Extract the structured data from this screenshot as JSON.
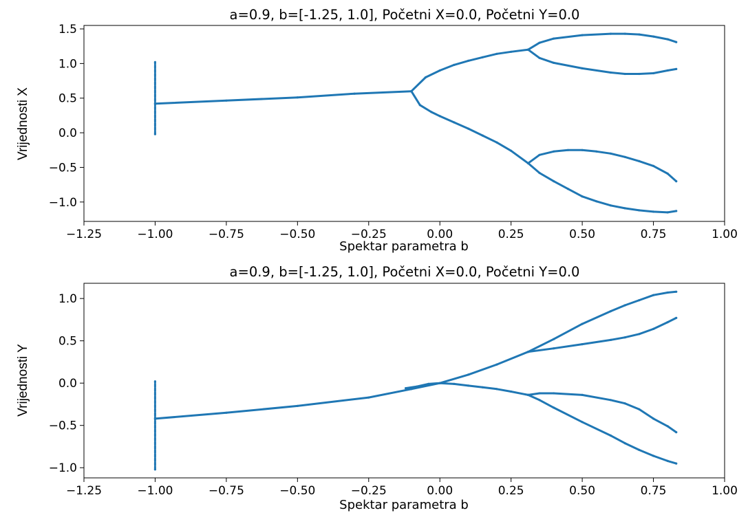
{
  "colors": {
    "series": "#1f77b4",
    "axes": "#000000",
    "background": "#ffffff"
  },
  "chart_data": [
    {
      "type": "scatter",
      "title": "a=0.9, b=[-1.25, 1.0], Početni X=0.0, Početni Y=0.0",
      "xlabel": "Spektar parametra b",
      "ylabel": "Vrijednosti X",
      "xlim": [
        -1.25,
        1.0
      ],
      "ylim": [
        -1.28,
        1.55
      ],
      "x_ticks": [
        "−1.25",
        "−1.00",
        "−0.75",
        "−0.50",
        "−0.25",
        "0.00",
        "0.25",
        "0.50",
        "0.75",
        "1.00"
      ],
      "y_ticks": [
        "−1.0",
        "−0.5",
        "0.0",
        "0.5",
        "1.0",
        "1.5"
      ],
      "x_tick_values": [
        -1.25,
        -1.0,
        -0.75,
        -0.5,
        -0.25,
        0.0,
        0.25,
        0.5,
        0.75,
        1.0
      ],
      "y_tick_values": [
        -1.0,
        -0.5,
        0.0,
        0.5,
        1.0,
        1.5
      ],
      "grid": false,
      "series": [
        {
          "values": [
            [
              -1.0,
              0.42
            ],
            [
              -0.75,
              0.465
            ],
            [
              -0.5,
              0.51
            ],
            [
              -0.3,
              0.565
            ],
            [
              -0.1,
              0.6
            ]
          ]
        },
        {
          "values": [
            [
              -0.1,
              0.6
            ],
            [
              -0.05,
              0.8
            ],
            [
              0.0,
              0.9
            ],
            [
              0.05,
              0.98
            ],
            [
              0.1,
              1.04
            ],
            [
              0.15,
              1.09
            ],
            [
              0.2,
              1.14
            ],
            [
              0.25,
              1.17
            ],
            [
              0.31,
              1.2
            ]
          ]
        },
        {
          "values": [
            [
              -0.1,
              0.6
            ],
            [
              -0.07,
              0.4
            ],
            [
              -0.03,
              0.3
            ],
            [
              0.0,
              0.24
            ],
            [
              0.05,
              0.15
            ],
            [
              0.1,
              0.06
            ],
            [
              0.15,
              -0.04
            ],
            [
              0.2,
              -0.14
            ],
            [
              0.25,
              -0.26
            ],
            [
              0.31,
              -0.44
            ]
          ]
        },
        {
          "values": [
            [
              0.31,
              1.2
            ],
            [
              0.35,
              1.3
            ],
            [
              0.4,
              1.36
            ],
            [
              0.5,
              1.41
            ],
            [
              0.6,
              1.43
            ],
            [
              0.65,
              1.43
            ],
            [
              0.7,
              1.42
            ],
            [
              0.75,
              1.39
            ],
            [
              0.8,
              1.35
            ],
            [
              0.83,
              1.31
            ]
          ]
        },
        {
          "values": [
            [
              0.31,
              1.2
            ],
            [
              0.35,
              1.08
            ],
            [
              0.4,
              1.01
            ],
            [
              0.5,
              0.93
            ],
            [
              0.6,
              0.87
            ],
            [
              0.65,
              0.85
            ],
            [
              0.7,
              0.85
            ],
            [
              0.75,
              0.86
            ],
            [
              0.8,
              0.9
            ],
            [
              0.83,
              0.92
            ]
          ]
        },
        {
          "values": [
            [
              0.31,
              -0.44
            ],
            [
              0.35,
              -0.32
            ],
            [
              0.4,
              -0.27
            ],
            [
              0.45,
              -0.25
            ],
            [
              0.5,
              -0.25
            ],
            [
              0.55,
              -0.27
            ],
            [
              0.6,
              -0.3
            ],
            [
              0.65,
              -0.35
            ],
            [
              0.7,
              -0.41
            ],
            [
              0.75,
              -0.48
            ],
            [
              0.8,
              -0.59
            ],
            [
              0.83,
              -0.7
            ]
          ]
        },
        {
          "values": [
            [
              0.31,
              -0.44
            ],
            [
              0.35,
              -0.58
            ],
            [
              0.4,
              -0.7
            ],
            [
              0.45,
              -0.81
            ],
            [
              0.5,
              -0.92
            ],
            [
              0.55,
              -0.99
            ],
            [
              0.6,
              -1.05
            ],
            [
              0.65,
              -1.09
            ],
            [
              0.7,
              -1.12
            ],
            [
              0.75,
              -1.14
            ],
            [
              0.8,
              -1.15
            ],
            [
              0.83,
              -1.13
            ]
          ]
        },
        {
          "values": [
            [
              -1.0,
              -0.02
            ],
            [
              -1.0,
              1.02
            ]
          ]
        }
      ]
    },
    {
      "type": "scatter",
      "title": "a=0.9, b=[-1.25, 1.0], Početni X=0.0, Početni Y=0.0",
      "xlabel": "Spektar parametra b",
      "ylabel": "Vrijednosti Y",
      "xlim": [
        -1.25,
        1.0
      ],
      "ylim": [
        -1.12,
        1.18
      ],
      "x_ticks": [
        "−1.25",
        "−1.00",
        "−0.75",
        "−0.50",
        "−0.25",
        "0.00",
        "0.25",
        "0.50",
        "0.75",
        "1.00"
      ],
      "y_ticks": [
        "−1.0",
        "−0.5",
        "0.0",
        "0.5",
        "1.0"
      ],
      "x_tick_values": [
        -1.25,
        -1.0,
        -0.75,
        -0.5,
        -0.25,
        0.0,
        0.25,
        0.5,
        0.75,
        1.0
      ],
      "y_tick_values": [
        -1.0,
        -0.5,
        0.0,
        0.5,
        1.0
      ],
      "grid": false,
      "series": [
        {
          "values": [
            [
              -1.0,
              -0.42
            ],
            [
              -0.75,
              -0.35
            ],
            [
              -0.5,
              -0.27
            ],
            [
              -0.25,
              -0.17
            ],
            [
              -0.1,
              -0.07
            ],
            [
              0.0,
              0.0
            ],
            [
              0.1,
              0.1
            ],
            [
              0.2,
              0.22
            ],
            [
              0.31,
              0.37
            ]
          ]
        },
        {
          "values": [
            [
              -0.12,
              -0.06
            ],
            [
              -0.08,
              -0.04
            ],
            [
              -0.04,
              -0.01
            ],
            [
              0.0,
              0.0
            ],
            [
              0.05,
              -0.01
            ],
            [
              0.1,
              -0.03
            ],
            [
              0.15,
              -0.05
            ],
            [
              0.2,
              -0.07
            ],
            [
              0.25,
              -0.1
            ],
            [
              0.31,
              -0.14
            ]
          ]
        },
        {
          "values": [
            [
              0.31,
              0.37
            ],
            [
              0.4,
              0.52
            ],
            [
              0.5,
              0.7
            ],
            [
              0.6,
              0.85
            ],
            [
              0.65,
              0.92
            ],
            [
              0.7,
              0.98
            ],
            [
              0.75,
              1.04
            ],
            [
              0.8,
              1.07
            ],
            [
              0.83,
              1.08
            ]
          ]
        },
        {
          "values": [
            [
              0.31,
              0.37
            ],
            [
              0.4,
              0.41
            ],
            [
              0.5,
              0.46
            ],
            [
              0.6,
              0.51
            ],
            [
              0.65,
              0.54
            ],
            [
              0.7,
              0.58
            ],
            [
              0.75,
              0.64
            ],
            [
              0.8,
              0.72
            ],
            [
              0.83,
              0.77
            ]
          ]
        },
        {
          "values": [
            [
              0.31,
              -0.14
            ],
            [
              0.35,
              -0.12
            ],
            [
              0.4,
              -0.12
            ],
            [
              0.5,
              -0.14
            ],
            [
              0.6,
              -0.2
            ],
            [
              0.65,
              -0.24
            ],
            [
              0.7,
              -0.31
            ],
            [
              0.75,
              -0.42
            ],
            [
              0.8,
              -0.51
            ],
            [
              0.83,
              -0.58
            ]
          ]
        },
        {
          "values": [
            [
              0.31,
              -0.14
            ],
            [
              0.35,
              -0.2
            ],
            [
              0.4,
              -0.29
            ],
            [
              0.5,
              -0.46
            ],
            [
              0.6,
              -0.62
            ],
            [
              0.65,
              -0.71
            ],
            [
              0.7,
              -0.79
            ],
            [
              0.75,
              -0.86
            ],
            [
              0.8,
              -0.92
            ],
            [
              0.83,
              -0.95
            ]
          ]
        },
        {
          "values": [
            [
              -1.0,
              -1.02
            ],
            [
              -1.0,
              0.02
            ]
          ]
        }
      ]
    }
  ]
}
